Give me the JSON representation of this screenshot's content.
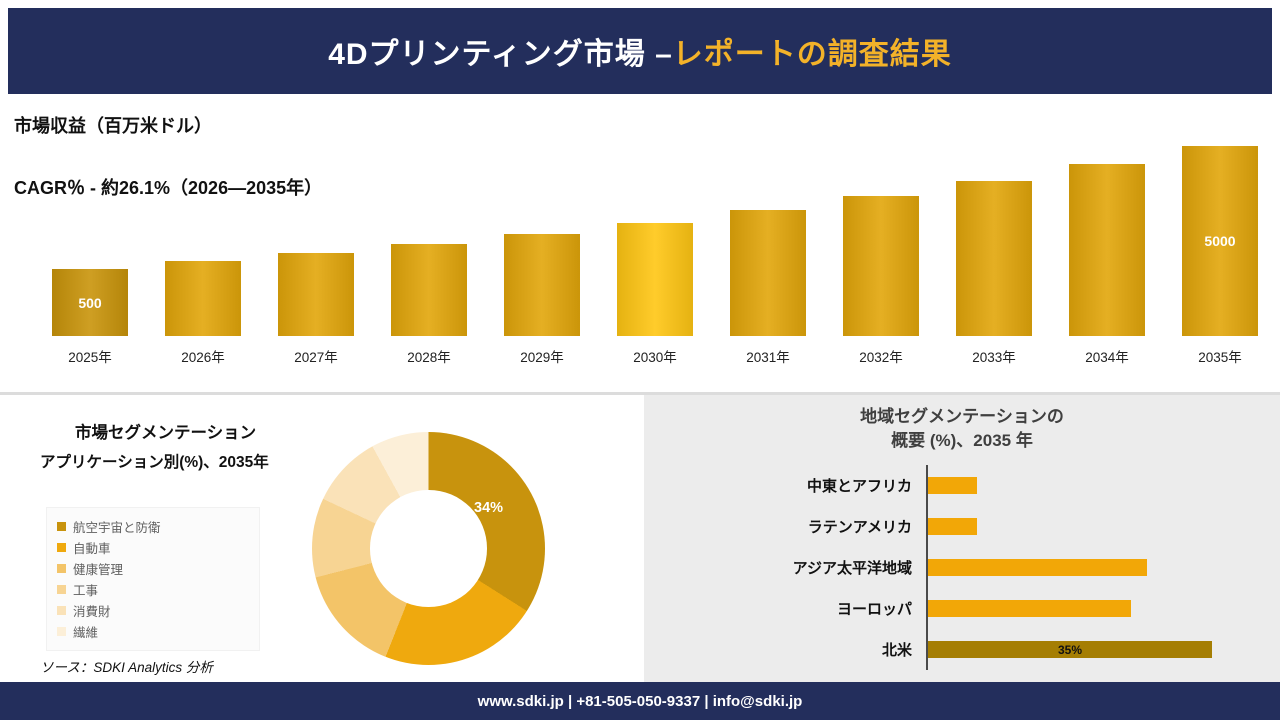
{
  "banner": {
    "title_main": "4Dプリンティング市場 –",
    "title_accent": "レポートの調査結果",
    "bg_color": "#232E5C",
    "accent_color": "#F3B229"
  },
  "revenue_section": {
    "title": "市場収益（百万米ドル）",
    "subtitle": "CAGR％ - 約26.1%（2026―2035年）"
  },
  "segmentation_panel": {
    "title_line1": "市場セグメンテーション",
    "title_line2": "アプリケーション別(%)、2035年",
    "donut_label": "34%",
    "source": "ソース：SDKI Analytics 分析"
  },
  "regional_panel": {
    "title_line1": "地域セグメンテーションの",
    "title_line2": "概要 (%)、2035 年"
  },
  "footer": {
    "text": "www.sdki.jp | +81-505-050-9337 | info@sdki.jp"
  },
  "chart_data": [
    {
      "type": "bar",
      "title": "市場収益（百万米ドル）",
      "subtitle": "CAGR％ - 約26.1%（2026―2035年）",
      "categories": [
        "2025年",
        "2026年",
        "2027年",
        "2028年",
        "2029年",
        "2030年",
        "2031年",
        "2032年",
        "2033年",
        "2034年",
        "2035年"
      ],
      "values": [
        500,
        630,
        795,
        1000,
        1260,
        1590,
        2005,
        2530,
        3190,
        4020,
        5000
      ],
      "value_labels": [
        "500",
        "",
        "",
        "",
        "",
        "",
        "",
        "",
        "",
        "",
        "5000"
      ],
      "ylabel": "百万米ドル",
      "grid": false,
      "colors": {
        "first": "#C9940A",
        "default": "#E2A60A",
        "highlight": "#FFC613",
        "highlight_index": 5
      }
    },
    {
      "type": "pie",
      "title": "市場セグメンテーション アプリケーション別(%)、2035年",
      "donut": true,
      "legend_position": "left",
      "segments": [
        {
          "label": "航空宇宙と防衛",
          "value": 34,
          "color": "#C8930D"
        },
        {
          "label": "自動車",
          "value": 22,
          "color": "#EFA90E"
        },
        {
          "label": "健康管理",
          "value": 15,
          "color": "#F3C468"
        },
        {
          "label": "工事",
          "value": 11,
          "color": "#F7D493"
        },
        {
          "label": "消費財",
          "value": 10,
          "color": "#FAE2B8"
        },
        {
          "label": "繊維",
          "value": 8,
          "color": "#FCEFD8"
        }
      ]
    },
    {
      "type": "bar-horizontal",
      "title": "地域セグメンテーションの概要 (%)、2035 年",
      "categories": [
        "中東とアフリカ",
        "ラテンアメリカ",
        "アジア太平洋地域",
        "ヨーロッパ",
        "北米"
      ],
      "values": [
        6,
        6,
        27,
        25,
        35
      ],
      "value_labels": [
        "",
        "",
        "",
        "",
        "35%"
      ],
      "xlim": [
        0,
        35
      ],
      "grid": false,
      "colors": [
        "#F2A707",
        "#F2A707",
        "#F2A707",
        "#F2A707",
        "#A57E03"
      ]
    }
  ]
}
